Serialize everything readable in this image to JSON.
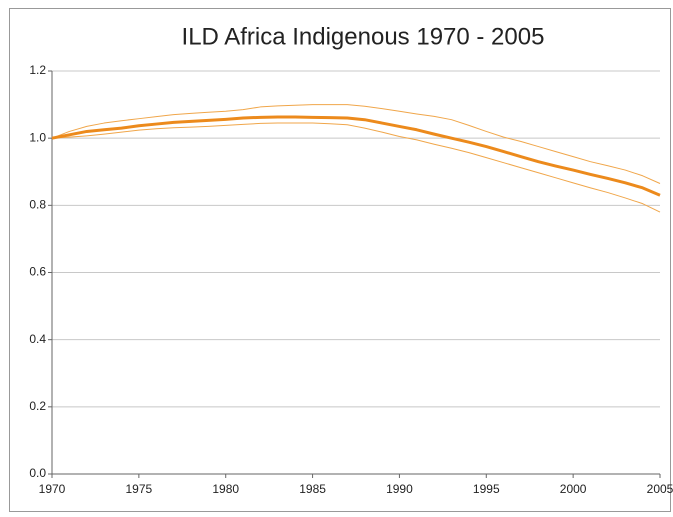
{
  "chart_data": {
    "type": "line",
    "title": "ILD Africa Indigenous 1970 - 2005",
    "x": [
      1970,
      1971,
      1972,
      1973,
      1974,
      1975,
      1976,
      1977,
      1978,
      1979,
      1980,
      1981,
      1982,
      1983,
      1984,
      1985,
      1986,
      1987,
      1988,
      1989,
      1990,
      1991,
      1992,
      1993,
      1994,
      1995,
      1996,
      1997,
      1998,
      1999,
      2000,
      2001,
      2002,
      2003,
      2004,
      2005
    ],
    "series": [
      {
        "color": "#f0a64a",
        "linewidth": 1,
        "values": [
          1.0,
          1.02,
          1.035,
          1.045,
          1.052,
          1.058,
          1.064,
          1.07,
          1.074,
          1.077,
          1.08,
          1.085,
          1.093,
          1.096,
          1.098,
          1.1,
          1.1,
          1.1,
          1.095,
          1.088,
          1.08,
          1.072,
          1.065,
          1.055,
          1.038,
          1.02,
          1.003,
          0.99,
          0.975,
          0.96,
          0.945,
          0.93,
          0.918,
          0.905,
          0.888,
          0.865
        ]
      },
      {
        "color": "#f0a64a",
        "linewidth": 1,
        "values": [
          1.0,
          1.003,
          1.007,
          1.012,
          1.018,
          1.024,
          1.028,
          1.031,
          1.033,
          1.035,
          1.038,
          1.041,
          1.044,
          1.045,
          1.045,
          1.045,
          1.043,
          1.04,
          1.03,
          1.018,
          1.005,
          0.995,
          0.982,
          0.97,
          0.957,
          0.942,
          0.927,
          0.912,
          0.897,
          0.882,
          0.867,
          0.852,
          0.838,
          0.822,
          0.805,
          0.78
        ]
      },
      {
        "color": "#ec8a1c",
        "linewidth": 3,
        "values": [
          1.0,
          1.01,
          1.02,
          1.025,
          1.03,
          1.037,
          1.042,
          1.047,
          1.05,
          1.053,
          1.056,
          1.06,
          1.062,
          1.063,
          1.063,
          1.062,
          1.061,
          1.06,
          1.055,
          1.045,
          1.035,
          1.025,
          1.012,
          1.0,
          0.988,
          0.975,
          0.96,
          0.945,
          0.93,
          0.917,
          0.905,
          0.892,
          0.88,
          0.867,
          0.852,
          0.83
        ]
      }
    ],
    "xlim": [
      1970,
      2005
    ],
    "xticks": [
      1970,
      1975,
      1980,
      1985,
      1990,
      1995,
      2000,
      2005
    ],
    "ylim": [
      0,
      1.2
    ],
    "yticks": [
      {
        "value": 0,
        "label": "0.0"
      },
      0.2,
      0.4,
      0.6,
      0.8,
      {
        "value": 1,
        "label": "1.0"
      },
      1.2
    ],
    "grid": true
  }
}
